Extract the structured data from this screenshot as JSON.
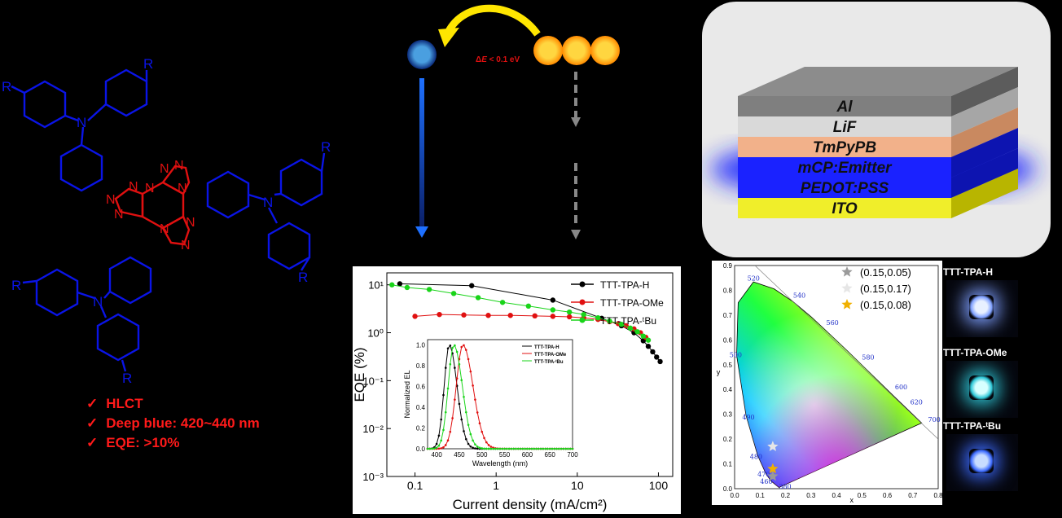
{
  "bullets": [
    {
      "mark": "✓",
      "text": "HLCT"
    },
    {
      "mark": "✓",
      "text": "Deep blue: 420~440 nm"
    },
    {
      "mark": "✓",
      "text": "EQE: >10%"
    }
  ],
  "molecule": {
    "substituent": "R",
    "ring_n": "N"
  },
  "energy": {
    "delta_prefix": "Δ",
    "delta_italic": "E",
    "delta_rest": " < 0.1 eV"
  },
  "device": {
    "layers": [
      "Al",
      "LiF",
      "TmPyPB",
      "mCP:Emitter",
      "PEDOT:PSS",
      "ITO"
    ]
  },
  "chart_data": [
    {
      "type": "line",
      "xlabel": "Current density (mA/cm²)",
      "ylabel": "EQE (%)",
      "xscale": "log",
      "yscale": "log",
      "xlim": [
        0.045,
        150
      ],
      "ylim": [
        0.001,
        10
      ],
      "x_ticks": [
        "0.1",
        "1",
        "10",
        "100"
      ],
      "y_ticks": [
        "10⁻³",
        "10⁻²",
        "10⁻¹",
        "10⁰",
        "10¹"
      ],
      "legend": "top-right",
      "series": [
        {
          "name": "TTT-TPA-H",
          "color": "#000000",
          "points": [
            [
              0.065,
              10.5
            ],
            [
              0.5,
              9.6
            ],
            [
              5,
              4.8
            ],
            [
              20,
              2.0
            ],
            [
              35,
              1.4
            ],
            [
              50,
              1.0
            ],
            [
              65,
              0.68
            ],
            [
              75,
              0.52
            ],
            [
              85,
              0.4
            ],
            [
              95,
              0.31
            ],
            [
              105,
              0.25
            ]
          ]
        },
        {
          "name": "TTT-TPA-OMe",
          "color": "#e01010",
          "points": [
            [
              0.1,
              2.2
            ],
            [
              0.2,
              2.4
            ],
            [
              0.4,
              2.35
            ],
            [
              0.8,
              2.3
            ],
            [
              1.5,
              2.3
            ],
            [
              3,
              2.25
            ],
            [
              5,
              2.2
            ],
            [
              8,
              2.15
            ],
            [
              12,
              2.05
            ],
            [
              18,
              1.9
            ],
            [
              25,
              1.7
            ],
            [
              32,
              1.55
            ],
            [
              40,
              1.4
            ],
            [
              50,
              1.2
            ],
            [
              60,
              1.0
            ],
            [
              70,
              0.8
            ]
          ]
        },
        {
          "name": "TTT-TPA-ᵗBu",
          "color": "#19d419",
          "points": [
            [
              0.052,
              10
            ],
            [
              0.08,
              8.8
            ],
            [
              0.15,
              8
            ],
            [
              0.3,
              6.6
            ],
            [
              0.6,
              5.4
            ],
            [
              1.2,
              4.3
            ],
            [
              2.5,
              3.6
            ],
            [
              5,
              3.0
            ],
            [
              8,
              2.7
            ],
            [
              12,
              2.4
            ],
            [
              18,
              2.05
            ],
            [
              25,
              1.75
            ],
            [
              35,
              1.5
            ],
            [
              45,
              1.25
            ],
            [
              55,
              1.05
            ],
            [
              65,
              0.85
            ],
            [
              75,
              0.7
            ]
          ]
        }
      ]
    },
    {
      "type": "line",
      "xlabel": "Wavelength (nm)",
      "ylabel": "Normalized EL",
      "xlim": [
        380,
        700
      ],
      "ylim": [
        0,
        1.05
      ],
      "x_ticks": [
        "400",
        "450",
        "500",
        "550",
        "600",
        "650",
        "700"
      ],
      "y_ticks": [
        "0.0",
        "0.2",
        "0.4",
        "0.6",
        "0.8",
        "1.0"
      ],
      "legend": "top-right",
      "series": [
        {
          "name": "TTT-TPA-H",
          "color": "#000000",
          "peak": 428,
          "width": 20
        },
        {
          "name": "TTT-TPA-OMe",
          "color": "#e01010",
          "peak": 458,
          "width": 26
        },
        {
          "name": "TTT-TPA-ᵗBu",
          "color": "#19d419",
          "peak": 438,
          "width": 22
        }
      ]
    },
    {
      "type": "scatter",
      "xlabel": "x",
      "ylabel": "y",
      "xlim": [
        0,
        0.8
      ],
      "ylim": [
        0,
        0.9
      ],
      "x_ticks": [
        "0.0",
        "0.1",
        "0.2",
        "0.3",
        "0.4",
        "0.5",
        "0.6",
        "0.7",
        "0.8"
      ],
      "y_ticks": [
        "0.0",
        "0.1",
        "0.2",
        "0.3",
        "0.4",
        "0.5",
        "0.6",
        "0.7",
        "0.8",
        "0.9"
      ],
      "wavelength_labels": [
        "380",
        "460",
        "470",
        "480",
        "490",
        "500",
        "520",
        "540",
        "560",
        "580",
        "600",
        "620",
        "700"
      ],
      "legend": "top-right",
      "series": [
        {
          "name": "(0.15,0.05)",
          "color": "#9a9a9a",
          "x": 0.15,
          "y": 0.05
        },
        {
          "name": "(0.15,0.17)",
          "color": "#e6e6e6",
          "x": 0.15,
          "y": 0.17
        },
        {
          "name": "(0.15,0.08)",
          "color": "#f0b000",
          "x": 0.15,
          "y": 0.08
        }
      ]
    }
  ],
  "photos": [
    {
      "label": "TTT-TPA-H",
      "glow": "#7fa0ff",
      "core": "#e8f0ff"
    },
    {
      "label": "TTT-TPA-OMe",
      "glow": "#2fc8d8",
      "core": "#d8ffff"
    },
    {
      "label": "TTT-TPA-ᵗBu",
      "glow": "#3d6bff",
      "core": "#c8dcff"
    }
  ]
}
